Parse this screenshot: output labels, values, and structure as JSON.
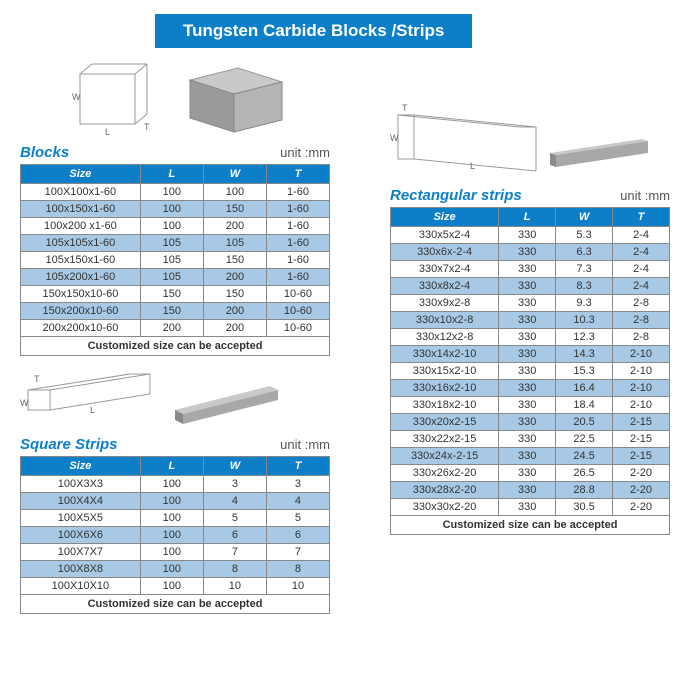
{
  "banner": "Tungsten Carbide Blocks /Strips",
  "unit_label": "unit :mm",
  "footer_text": "Customized size can be accepted",
  "headers": [
    "Size",
    "L",
    "W",
    "T"
  ],
  "colors": {
    "brand": "#0d7fc9",
    "row_alt": "#a8c9e6",
    "row_norm": "#ffffff",
    "border": "#888888",
    "text": "#333333"
  },
  "blocks": {
    "title": "Blocks",
    "rows": [
      {
        "size": "100X100x1-60",
        "l": "100",
        "w": "100",
        "t": "1-60"
      },
      {
        "size": "100x150x1-60",
        "l": "100",
        "w": "150",
        "t": "1-60"
      },
      {
        "size": "100x200 x1-60",
        "l": "100",
        "w": "200",
        "t": "1-60"
      },
      {
        "size": "105x105x1-60",
        "l": "105",
        "w": "105",
        "t": "1-60"
      },
      {
        "size": "105x150x1-60",
        "l": "105",
        "w": "150",
        "t": "1-60"
      },
      {
        "size": "105x200x1-60",
        "l": "105",
        "w": "200",
        "t": "1-60"
      },
      {
        "size": "150x150x10-60",
        "l": "150",
        "w": "150",
        "t": "10-60"
      },
      {
        "size": "150x200x10-60",
        "l": "150",
        "w": "200",
        "t": "10-60"
      },
      {
        "size": "200x200x10-60",
        "l": "200",
        "w": "200",
        "t": "10-60"
      }
    ]
  },
  "square_strips": {
    "title": "Square Strips",
    "rows": [
      {
        "size": "100X3X3",
        "l": "100",
        "w": "3",
        "t": "3"
      },
      {
        "size": "100X4X4",
        "l": "100",
        "w": "4",
        "t": "4"
      },
      {
        "size": "100X5X5",
        "l": "100",
        "w": "5",
        "t": "5"
      },
      {
        "size": "100X6X6",
        "l": "100",
        "w": "6",
        "t": "6"
      },
      {
        "size": "100X7X7",
        "l": "100",
        "w": "7",
        "t": "7"
      },
      {
        "size": "100X8X8",
        "l": "100",
        "w": "8",
        "t": "8"
      },
      {
        "size": "100X10X10",
        "l": "100",
        "w": "10",
        "t": "10"
      }
    ]
  },
  "rectangular_strips": {
    "title": "Rectangular strips",
    "rows": [
      {
        "size": "330x5x2-4",
        "l": "330",
        "w": "5.3",
        "t": "2-4"
      },
      {
        "size": "330x6x-2-4",
        "l": "330",
        "w": "6.3",
        "t": "2-4"
      },
      {
        "size": "330x7x2-4",
        "l": "330",
        "w": "7.3",
        "t": "2-4"
      },
      {
        "size": "330x8x2-4",
        "l": "330",
        "w": "8.3",
        "t": "2-4"
      },
      {
        "size": "330x9x2-8",
        "l": "330",
        "w": "9.3",
        "t": "2-8"
      },
      {
        "size": "330x10x2-8",
        "l": "330",
        "w": "10.3",
        "t": "2-8"
      },
      {
        "size": "330x12x2-8",
        "l": "330",
        "w": "12.3",
        "t": "2-8"
      },
      {
        "size": "330x14x2-10",
        "l": "330",
        "w": "14.3",
        "t": "2-10"
      },
      {
        "size": "330x15x2-10",
        "l": "330",
        "w": "15.3",
        "t": "2-10"
      },
      {
        "size": "330x16x2-10",
        "l": "330",
        "w": "16.4",
        "t": "2-10"
      },
      {
        "size": "330x18x2-10",
        "l": "330",
        "w": "18.4",
        "t": "2-10"
      },
      {
        "size": "330x20x2-15",
        "l": "330",
        "w": "20.5",
        "t": "2-15"
      },
      {
        "size": "330x22x2-15",
        "l": "330",
        "w": "22.5",
        "t": "2-15"
      },
      {
        "size": "330x24x-2-15",
        "l": "330",
        "w": "24.5",
        "t": "2-15"
      },
      {
        "size": "330x26x2-20",
        "l": "330",
        "w": "26.5",
        "t": "2-20"
      },
      {
        "size": "330x28x2-20",
        "l": "330",
        "w": "28.8",
        "t": "2-20"
      },
      {
        "size": "330x30x2-20",
        "l": "330",
        "w": "30.5",
        "t": "2-20"
      }
    ]
  }
}
